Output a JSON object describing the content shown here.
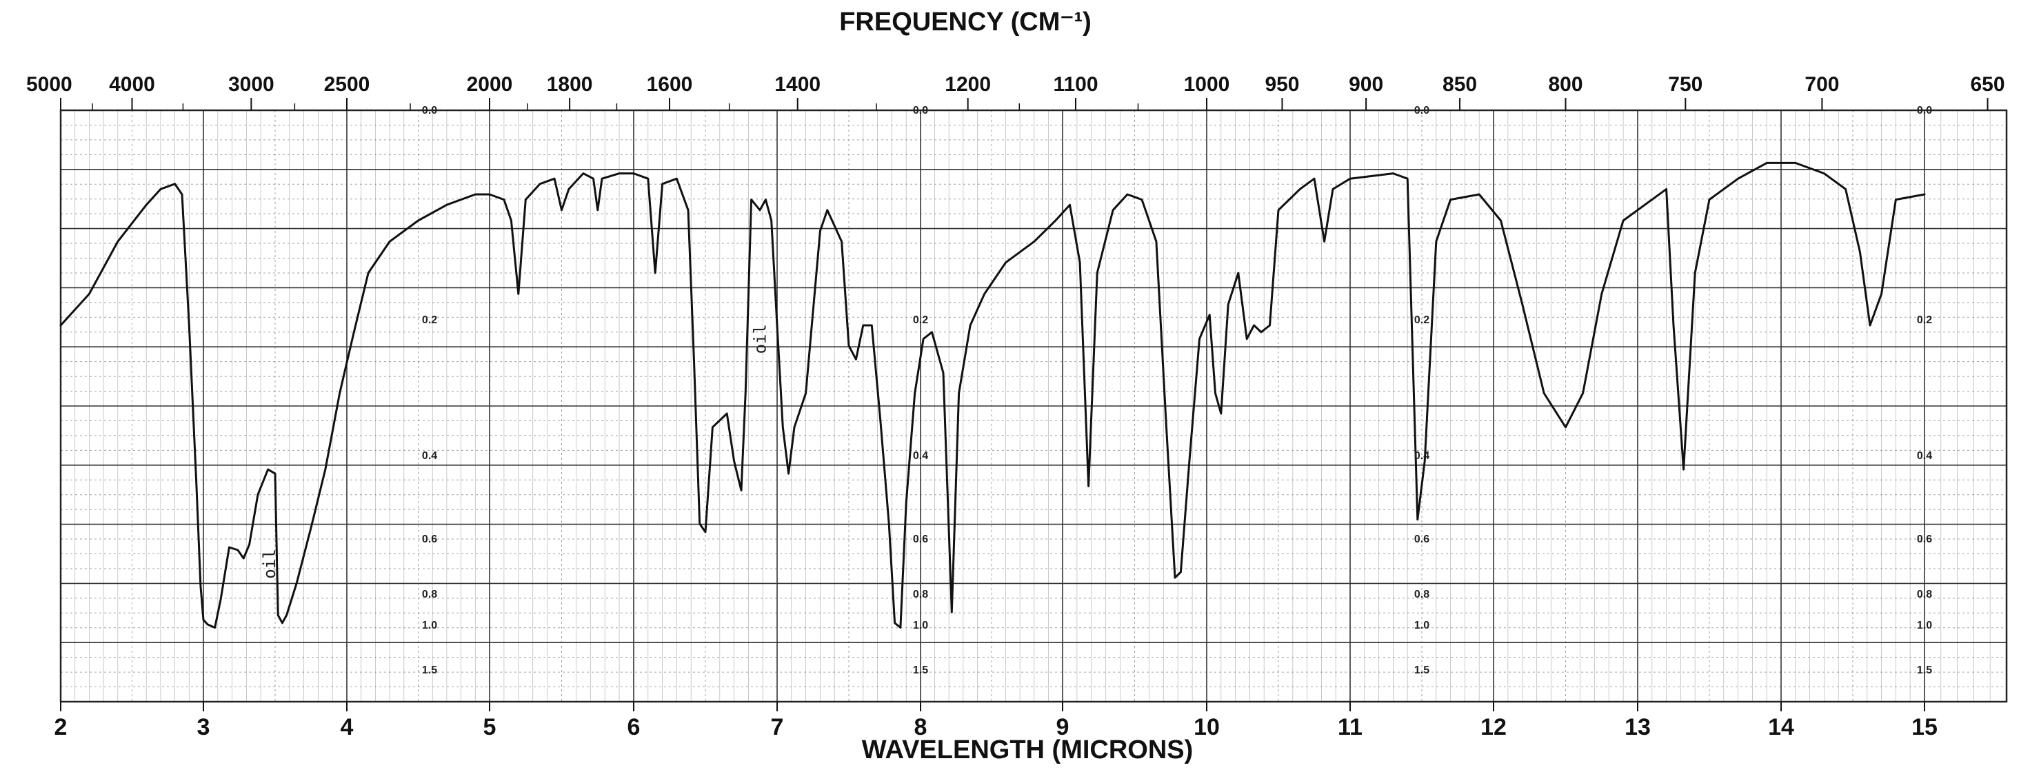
{
  "chart_data": {
    "type": "line",
    "title": "FREQUENCY (CM⁻¹)",
    "xlabel": "WAVELENGTH (MICRONS)",
    "ylabel": "",
    "x_range": [
      2,
      15.5
    ],
    "y_axis": "absorbance",
    "y_range": [
      0.0,
      1.8
    ],
    "grid": true,
    "legend": "none",
    "wavelength_ticks": [
      "2",
      "3",
      "4",
      "5",
      "6",
      "7",
      "8",
      "9",
      "10",
      "11",
      "12",
      "13",
      "14",
      "15"
    ],
    "frequency_ticks": [
      {
        "label": "5000",
        "cm": 5000
      },
      {
        "label": "4000",
        "cm": 4000
      },
      {
        "label": "3000",
        "cm": 3000
      },
      {
        "label": "2500",
        "cm": 2500
      },
      {
        "label": "2000",
        "cm": 2000
      },
      {
        "label": "1800",
        "cm": 1800
      },
      {
        "label": "1600",
        "cm": 1600
      },
      {
        "label": "1400",
        "cm": 1400
      },
      {
        "label": "1200",
        "cm": 1200
      },
      {
        "label": "1100",
        "cm": 1100
      },
      {
        "label": "1000",
        "cm": 1000
      },
      {
        "label": "950",
        "cm": 950
      },
      {
        "label": "900",
        "cm": 900
      },
      {
        "label": "850",
        "cm": 850
      },
      {
        "label": "800",
        "cm": 800
      },
      {
        "label": "750",
        "cm": 750
      },
      {
        "label": "700",
        "cm": 700
      },
      {
        "label": "650",
        "cm": 650
      }
    ],
    "absorbance_labels": [
      {
        "label": "0.0",
        "value": 0.0
      },
      {
        "label": "0.2",
        "value": 0.2
      },
      {
        "label": "0.4",
        "value": 0.4
      },
      {
        "label": "0.6",
        "value": 0.6
      },
      {
        "label": "0.8",
        "value": 0.8
      },
      {
        "label": "1.0",
        "value": 1.0
      },
      {
        "label": "1.5",
        "value": 1.5
      }
    ],
    "absorbance_label_columns_micron": [
      4.58,
      8.0,
      11.5,
      15.0
    ],
    "annotations": [
      {
        "text": "oil",
        "x": 3.5,
        "y": 0.67
      },
      {
        "text": "oil",
        "x": 6.92,
        "y": 0.22
      }
    ],
    "series": [
      {
        "name": "",
        "points": [
          [
            2.0,
            0.2
          ],
          [
            2.2,
            0.17
          ],
          [
            2.4,
            0.12
          ],
          [
            2.6,
            0.085
          ],
          [
            2.7,
            0.07
          ],
          [
            2.8,
            0.065
          ],
          [
            2.85,
            0.075
          ],
          [
            2.9,
            0.2
          ],
          [
            2.95,
            0.45
          ],
          [
            2.98,
            0.75
          ],
          [
            3.0,
            0.93
          ],
          [
            3.03,
            0.96
          ],
          [
            3.08,
            0.98
          ],
          [
            3.12,
            0.8
          ],
          [
            3.18,
            0.61
          ],
          [
            3.24,
            0.62
          ],
          [
            3.28,
            0.65
          ],
          [
            3.32,
            0.6
          ],
          [
            3.38,
            0.48
          ],
          [
            3.45,
            0.42
          ],
          [
            3.5,
            0.43
          ],
          [
            3.52,
            0.9
          ],
          [
            3.55,
            0.95
          ],
          [
            3.58,
            0.9
          ],
          [
            3.65,
            0.74
          ],
          [
            3.75,
            0.56
          ],
          [
            3.85,
            0.42
          ],
          [
            3.95,
            0.3
          ],
          [
            4.05,
            0.21
          ],
          [
            4.15,
            0.15
          ],
          [
            4.3,
            0.12
          ],
          [
            4.5,
            0.1
          ],
          [
            4.7,
            0.085
          ],
          [
            4.9,
            0.075
          ],
          [
            5.0,
            0.075
          ],
          [
            5.1,
            0.08
          ],
          [
            5.15,
            0.1
          ],
          [
            5.2,
            0.17
          ],
          [
            5.25,
            0.08
          ],
          [
            5.35,
            0.065
          ],
          [
            5.45,
            0.06
          ],
          [
            5.5,
            0.09
          ],
          [
            5.55,
            0.07
          ],
          [
            5.65,
            0.055
          ],
          [
            5.72,
            0.06
          ],
          [
            5.75,
            0.09
          ],
          [
            5.78,
            0.06
          ],
          [
            5.9,
            0.055
          ],
          [
            6.0,
            0.055
          ],
          [
            6.1,
            0.06
          ],
          [
            6.15,
            0.15
          ],
          [
            6.2,
            0.065
          ],
          [
            6.3,
            0.06
          ],
          [
            6.38,
            0.09
          ],
          [
            6.42,
            0.25
          ],
          [
            6.46,
            0.55
          ],
          [
            6.5,
            0.57
          ],
          [
            6.55,
            0.35
          ],
          [
            6.65,
            0.33
          ],
          [
            6.7,
            0.4
          ],
          [
            6.75,
            0.47
          ],
          [
            6.78,
            0.3
          ],
          [
            6.82,
            0.08
          ],
          [
            6.88,
            0.09
          ],
          [
            6.92,
            0.08
          ],
          [
            6.96,
            0.1
          ],
          [
            7.0,
            0.2
          ],
          [
            7.04,
            0.35
          ],
          [
            7.08,
            0.43
          ],
          [
            7.12,
            0.35
          ],
          [
            7.2,
            0.3
          ],
          [
            7.3,
            0.11
          ],
          [
            7.35,
            0.09
          ],
          [
            7.45,
            0.12
          ],
          [
            7.5,
            0.23
          ],
          [
            7.55,
            0.25
          ],
          [
            7.6,
            0.2
          ],
          [
            7.66,
            0.2
          ],
          [
            7.72,
            0.34
          ],
          [
            7.78,
            0.55
          ],
          [
            7.82,
            0.95
          ],
          [
            7.86,
            0.98
          ],
          [
            7.9,
            0.5
          ],
          [
            7.96,
            0.3
          ],
          [
            8.02,
            0.22
          ],
          [
            8.08,
            0.21
          ],
          [
            8.16,
            0.27
          ],
          [
            8.22,
            0.88
          ],
          [
            8.27,
            0.3
          ],
          [
            8.35,
            0.2
          ],
          [
            8.45,
            0.17
          ],
          [
            8.6,
            0.14
          ],
          [
            8.8,
            0.12
          ],
          [
            8.95,
            0.1
          ],
          [
            9.05,
            0.085
          ],
          [
            9.12,
            0.14
          ],
          [
            9.18,
            0.46
          ],
          [
            9.24,
            0.15
          ],
          [
            9.35,
            0.09
          ],
          [
            9.45,
            0.075
          ],
          [
            9.55,
            0.08
          ],
          [
            9.65,
            0.12
          ],
          [
            9.72,
            0.35
          ],
          [
            9.78,
            0.72
          ],
          [
            9.82,
            0.7
          ],
          [
            9.88,
            0.4
          ],
          [
            9.95,
            0.22
          ],
          [
            10.02,
            0.19
          ],
          [
            10.06,
            0.3
          ],
          [
            10.1,
            0.33
          ],
          [
            10.15,
            0.18
          ],
          [
            10.22,
            0.15
          ],
          [
            10.28,
            0.22
          ],
          [
            10.33,
            0.2
          ],
          [
            10.38,
            0.21
          ],
          [
            10.44,
            0.2
          ],
          [
            10.5,
            0.09
          ],
          [
            10.65,
            0.07
          ],
          [
            10.75,
            0.06
          ],
          [
            10.82,
            0.12
          ],
          [
            10.88,
            0.07
          ],
          [
            11.0,
            0.06
          ],
          [
            11.3,
            0.055
          ],
          [
            11.4,
            0.06
          ],
          [
            11.47,
            0.54
          ],
          [
            11.52,
            0.4
          ],
          [
            11.6,
            0.12
          ],
          [
            11.7,
            0.08
          ],
          [
            11.9,
            0.075
          ],
          [
            12.05,
            0.1
          ],
          [
            12.2,
            0.18
          ],
          [
            12.35,
            0.3
          ],
          [
            12.5,
            0.35
          ],
          [
            12.62,
            0.3
          ],
          [
            12.75,
            0.17
          ],
          [
            12.9,
            0.1
          ],
          [
            13.1,
            0.08
          ],
          [
            13.2,
            0.07
          ],
          [
            13.25,
            0.2
          ],
          [
            13.32,
            0.42
          ],
          [
            13.4,
            0.15
          ],
          [
            13.5,
            0.08
          ],
          [
            13.7,
            0.06
          ],
          [
            13.9,
            0.045
          ],
          [
            14.1,
            0.045
          ],
          [
            14.3,
            0.055
          ],
          [
            14.45,
            0.07
          ],
          [
            14.55,
            0.13
          ],
          [
            14.62,
            0.2
          ],
          [
            14.7,
            0.17
          ],
          [
            14.8,
            0.08
          ],
          [
            15.0,
            0.075
          ]
        ]
      }
    ]
  }
}
